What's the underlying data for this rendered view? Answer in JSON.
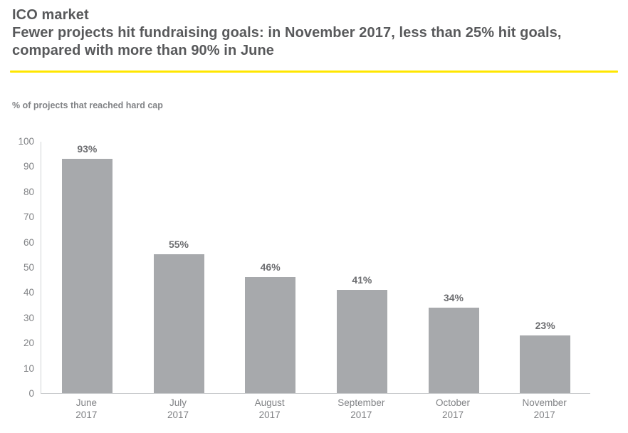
{
  "header": {
    "title": "ICO market",
    "subtitle": "Fewer projects hit fundraising goals: in November 2017, less than 25% hit goals, compared with more than 90% in June"
  },
  "chart_data": {
    "type": "bar",
    "title": "% of projects that reached hard cap",
    "categories": [
      "June",
      "July",
      "August",
      "September",
      "October",
      "November"
    ],
    "category_year": "2017",
    "values": [
      93,
      55,
      46,
      41,
      34,
      23
    ],
    "value_labels": [
      "93%",
      "55%",
      "46%",
      "41%",
      "34%",
      "23%"
    ],
    "xlabel": "",
    "ylabel": "",
    "ylim": [
      0,
      100
    ],
    "ytick_step": 10,
    "grid": "off",
    "legend": "none"
  },
  "colors": {
    "accent_rule": "#FFE600",
    "bar": "#A7A9AC",
    "heading_text": "#58595B",
    "value_label_text": "#6D6E71",
    "tick_text": "#808285",
    "axis_line": "#D1D3D4"
  }
}
